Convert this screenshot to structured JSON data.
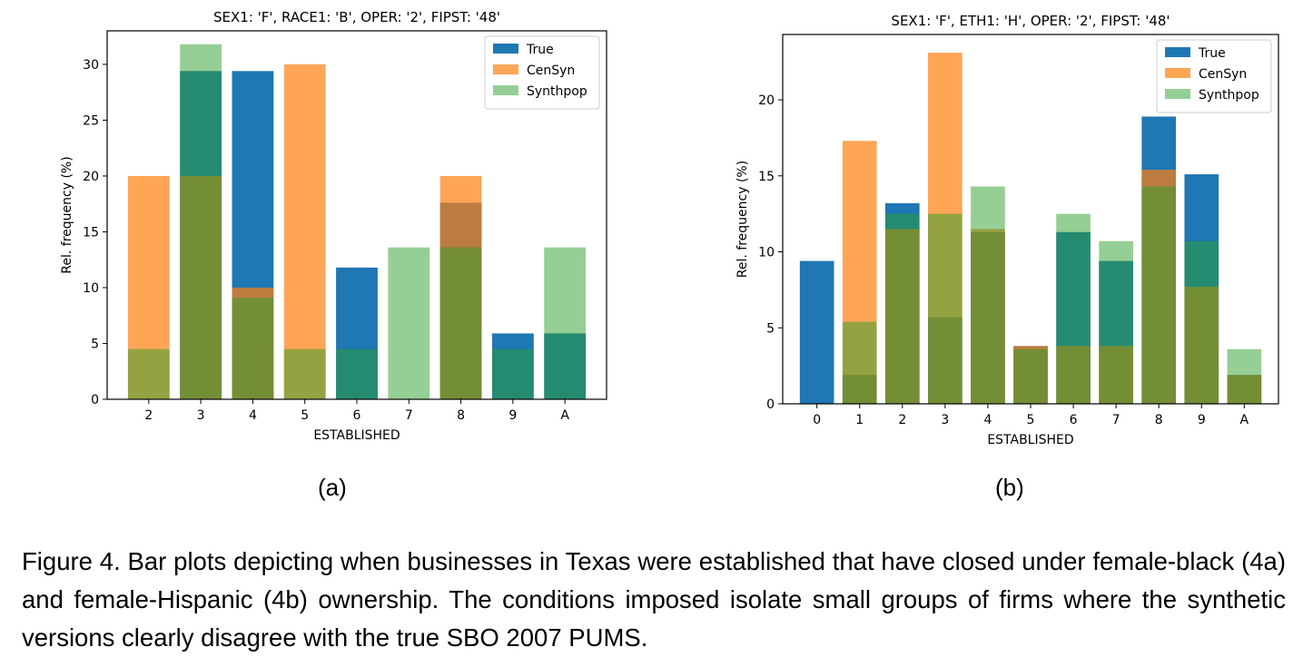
{
  "chart_data": [
    {
      "type": "bar",
      "title": "SEX1: 'F',  RACE1: 'B',  OPER: '2',  FIPST: '48'",
      "xlabel": "ESTABLISHED",
      "ylabel": "Rel. frequency (%)",
      "ylim": [
        0,
        33
      ],
      "yticks": [
        0,
        5,
        10,
        15,
        20,
        25,
        30
      ],
      "legend_position": "top-right",
      "categories": [
        "2",
        "3",
        "4",
        "5",
        "6",
        "7",
        "8",
        "9",
        "A"
      ],
      "series": [
        {
          "name": "True",
          "color": "#1f77b4",
          "values": [
            0,
            29.4,
            29.4,
            0,
            11.8,
            0,
            17.6,
            5.9,
            5.9
          ]
        },
        {
          "name": "CenSyn",
          "color": "#ff7f0e",
          "values": [
            20.0,
            20.0,
            10.0,
            30.0,
            0,
            0,
            20.0,
            0,
            0
          ]
        },
        {
          "name": "Synthpop",
          "color": "#2ca02c",
          "values": [
            4.5,
            31.8,
            9.1,
            4.5,
            4.5,
            13.6,
            13.6,
            4.5,
            13.6
          ]
        }
      ]
    },
    {
      "type": "bar",
      "title": "SEX1: 'F',  ETH1: 'H',  OPER: '2',  FIPST: '48'",
      "xlabel": "ESTABLISHED",
      "ylabel": "Rel. frequency (%)",
      "ylim": [
        0,
        24.3
      ],
      "yticks": [
        0,
        5,
        10,
        15,
        20
      ],
      "legend_position": "top-right",
      "categories": [
        "0",
        "1",
        "2",
        "3",
        "4",
        "5",
        "6",
        "7",
        "8",
        "9",
        "A"
      ],
      "series": [
        {
          "name": "True",
          "color": "#1f77b4",
          "values": [
            9.4,
            1.9,
            13.2,
            5.7,
            11.3,
            3.8,
            11.3,
            9.4,
            18.9,
            15.1,
            1.9
          ]
        },
        {
          "name": "CenSyn",
          "color": "#ff7f0e",
          "values": [
            0,
            17.3,
            11.5,
            23.1,
            11.5,
            3.8,
            3.8,
            3.8,
            15.4,
            7.7,
            1.9
          ]
        },
        {
          "name": "Synthpop",
          "color": "#2ca02c",
          "values": [
            0,
            5.4,
            12.5,
            12.5,
            14.3,
            3.6,
            12.5,
            10.7,
            14.3,
            10.7,
            3.6
          ]
        }
      ]
    }
  ],
  "panel_labels": [
    "(a)",
    "(b)"
  ],
  "caption": "Figure 4. Bar plots depicting when businesses in Texas were established that have closed under female-black (4a) and female-Hispanic (4b) ownership. The conditions imposed isolate small groups of firms where the synthetic versions clearly disagree with the true SBO 2007 PUMS."
}
